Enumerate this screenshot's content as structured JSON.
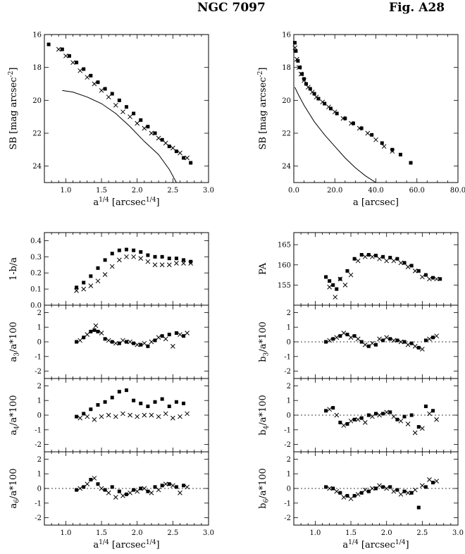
{
  "header": {
    "object": "NGC 7097",
    "figure": "Fig. A28"
  },
  "chart_data": [
    {
      "id": "sb_vs_r14",
      "type": "scatter",
      "xlabel": "a^{1/4} [arcsec^{1/4}]",
      "ylabel": "SB [mag arcsec^{-2}]",
      "xlim": [
        0.7,
        3.0
      ],
      "ylim": [
        16,
        25
      ],
      "y_inverted": true,
      "xticks": [
        "1.0",
        "1.5",
        "2.0",
        "2.5",
        "3.0"
      ],
      "yticks": [
        "16",
        "18",
        "20",
        "22",
        "24"
      ],
      "series": [
        {
          "marker": "filled-square",
          "x": [
            0.76,
            0.95,
            1.05,
            1.15,
            1.25,
            1.35,
            1.45,
            1.55,
            1.65,
            1.75,
            1.85,
            1.95,
            2.05,
            2.15,
            2.25,
            2.35,
            2.45,
            2.55,
            2.65,
            2.75
          ],
          "y": [
            16.6,
            16.9,
            17.3,
            17.7,
            18.1,
            18.5,
            18.9,
            19.3,
            19.6,
            20.0,
            20.4,
            20.8,
            21.2,
            21.6,
            22.0,
            22.4,
            22.8,
            23.1,
            23.5,
            23.8
          ]
        },
        {
          "marker": "cross",
          "x": [
            0.9,
            1.0,
            1.1,
            1.2,
            1.3,
            1.4,
            1.5,
            1.6,
            1.7,
            1.8,
            1.9,
            2.0,
            2.1,
            2.2,
            2.3,
            2.4,
            2.5,
            2.6,
            2.7
          ],
          "y": [
            16.9,
            17.3,
            17.7,
            18.2,
            18.6,
            19.0,
            19.4,
            19.8,
            20.3,
            20.7,
            21.0,
            21.4,
            21.7,
            22.0,
            22.3,
            22.6,
            22.9,
            23.2,
            23.5
          ]
        },
        {
          "marker": "line",
          "x": [
            0.95,
            1.1,
            1.3,
            1.5,
            1.7,
            1.9,
            2.1,
            2.3,
            2.45,
            2.55
          ],
          "y": [
            19.4,
            19.5,
            19.8,
            20.2,
            20.8,
            21.6,
            22.5,
            23.3,
            24.2,
            25.0
          ]
        }
      ]
    },
    {
      "id": "sb_vs_a",
      "type": "scatter",
      "xlabel": "a [arcsec]",
      "ylabel": "SB [mag arcsec^{-2}]",
      "xlim": [
        0,
        80
      ],
      "ylim": [
        16,
        25
      ],
      "y_inverted": true,
      "xticks": [
        "0.0",
        "20.0",
        "40.0",
        "60.0",
        "80.0"
      ],
      "yticks": [
        "16",
        "18",
        "20",
        "22",
        "24"
      ],
      "series": [
        {
          "marker": "filled-square",
          "x": [
            0.5,
            1,
            2,
            3,
            4,
            5,
            6,
            8,
            10,
            12,
            15,
            18,
            21,
            25,
            29,
            33,
            38,
            43,
            48,
            52,
            57
          ],
          "y": [
            16.5,
            17.0,
            17.6,
            18.0,
            18.4,
            18.7,
            19.0,
            19.3,
            19.6,
            19.9,
            20.2,
            20.5,
            20.8,
            21.1,
            21.4,
            21.7,
            22.1,
            22.6,
            23.0,
            23.3,
            23.8
          ]
        },
        {
          "marker": "cross",
          "x": [
            0.6,
            1.5,
            2.5,
            3.5,
            5,
            7,
            9,
            11,
            14,
            17,
            20,
            24,
            28,
            32,
            36,
            40,
            44,
            48
          ],
          "y": [
            16.8,
            17.5,
            18.0,
            18.4,
            18.8,
            19.2,
            19.5,
            19.8,
            20.1,
            20.4,
            20.7,
            21.1,
            21.4,
            21.7,
            22.0,
            22.4,
            22.8,
            23.1
          ]
        },
        {
          "marker": "line",
          "x": [
            0.5,
            2,
            5,
            10,
            15,
            20,
            25,
            30,
            35,
            40
          ],
          "y": [
            19.2,
            19.6,
            20.3,
            21.3,
            22.1,
            22.8,
            23.5,
            24.1,
            24.6,
            25.0
          ]
        }
      ]
    },
    {
      "id": "ellipticity",
      "type": "scatter",
      "xlabel": "",
      "ylabel": "1-b/a",
      "xlim": [
        0.7,
        3.0
      ],
      "ylim": [
        0.0,
        0.45
      ],
      "yticks": [
        "0.0",
        "0.1",
        "0.2",
        "0.3",
        "0.4"
      ],
      "series": [
        {
          "marker": "filled-square",
          "x": [
            1.15,
            1.25,
            1.35,
            1.45,
            1.55,
            1.65,
            1.75,
            1.85,
            1.95,
            2.05,
            2.15,
            2.25,
            2.35,
            2.45,
            2.55,
            2.65,
            2.75
          ],
          "y": [
            0.11,
            0.14,
            0.18,
            0.23,
            0.28,
            0.32,
            0.34,
            0.345,
            0.34,
            0.33,
            0.31,
            0.3,
            0.3,
            0.29,
            0.29,
            0.28,
            0.27
          ]
        },
        {
          "marker": "cross",
          "x": [
            1.15,
            1.25,
            1.35,
            1.45,
            1.55,
            1.65,
            1.75,
            1.85,
            1.95,
            2.05,
            2.15,
            2.25,
            2.35,
            2.45,
            2.55,
            2.65,
            2.75
          ],
          "y": [
            0.09,
            0.1,
            0.12,
            0.15,
            0.19,
            0.24,
            0.28,
            0.3,
            0.3,
            0.29,
            0.27,
            0.25,
            0.25,
            0.25,
            0.26,
            0.26,
            0.26
          ]
        }
      ]
    },
    {
      "id": "position_angle",
      "type": "scatter",
      "xlabel": "",
      "ylabel": "PA",
      "xlim": [
        0.7,
        3.0
      ],
      "ylim": [
        150,
        168
      ],
      "yticks": [
        "155",
        "160",
        "165"
      ],
      "series": [
        {
          "marker": "filled-square",
          "x": [
            1.15,
            1.2,
            1.25,
            1.3,
            1.35,
            1.45,
            1.55,
            1.65,
            1.75,
            1.85,
            1.95,
            2.05,
            2.15,
            2.25,
            2.35,
            2.45,
            2.55,
            2.65,
            2.75
          ],
          "y": [
            157.0,
            156.0,
            155.0,
            154.0,
            156.5,
            158.5,
            161.5,
            162.5,
            162.5,
            162.3,
            162.0,
            161.8,
            161.5,
            160.5,
            159.8,
            158.5,
            157.5,
            156.8,
            156.5
          ]
        },
        {
          "marker": "cross",
          "x": [
            1.2,
            1.28,
            1.35,
            1.42,
            1.5,
            1.6,
            1.7,
            1.8,
            1.9,
            2.0,
            2.1,
            2.2,
            2.3,
            2.4,
            2.5,
            2.6,
            2.7
          ],
          "y": [
            154.5,
            152.0,
            156.5,
            155.0,
            157.5,
            161.0,
            162.0,
            162.0,
            161.5,
            161.0,
            161.0,
            160.5,
            159.5,
            158.5,
            157.0,
            156.5,
            156.5
          ]
        }
      ]
    },
    {
      "id": "a3",
      "type": "scatter",
      "xlabel": "",
      "ylabel": "a_3/a*100",
      "xlim": [
        0.7,
        3.0
      ],
      "ylim": [
        -2.5,
        2.5
      ],
      "yticks": [
        "-2",
        "-1",
        "0",
        "1",
        "2"
      ],
      "series": [
        {
          "marker": "filled-square",
          "x": [
            1.15,
            1.25,
            1.35,
            1.4,
            1.45,
            1.55,
            1.65,
            1.75,
            1.85,
            1.95,
            2.05,
            2.15,
            2.25,
            2.35,
            2.45,
            2.55,
            2.65
          ],
          "y": [
            0.0,
            0.3,
            0.7,
            0.8,
            0.7,
            0.2,
            0.0,
            -0.1,
            0.0,
            -0.1,
            -0.2,
            -0.3,
            0.1,
            0.4,
            0.5,
            0.6,
            0.4
          ]
        },
        {
          "marker": "cross",
          "x": [
            1.2,
            1.3,
            1.42,
            1.5,
            1.6,
            1.7,
            1.8,
            1.9,
            2.0,
            2.1,
            2.2,
            2.3,
            2.4,
            2.5,
            2.6,
            2.7
          ],
          "y": [
            0.1,
            0.5,
            1.1,
            0.6,
            0.1,
            -0.1,
            0.1,
            0.0,
            -0.2,
            -0.1,
            0.0,
            0.3,
            0.2,
            -0.3,
            0.5,
            0.6
          ]
        }
      ]
    },
    {
      "id": "b3",
      "type": "scatter",
      "xlabel": "",
      "ylabel": "b_3/a*100",
      "xlim": [
        0.7,
        3.0
      ],
      "ylim": [
        -2.5,
        2.5
      ],
      "yticks": [
        "-2",
        "-1",
        "0",
        "1",
        "2"
      ],
      "zero_line": true,
      "series": [
        {
          "marker": "filled-square",
          "x": [
            1.15,
            1.25,
            1.35,
            1.45,
            1.55,
            1.65,
            1.75,
            1.85,
            1.95,
            2.05,
            2.15,
            2.25,
            2.35,
            2.45,
            2.55,
            2.65
          ],
          "y": [
            0.0,
            0.2,
            0.4,
            0.5,
            0.4,
            0.0,
            -0.3,
            -0.2,
            0.1,
            0.2,
            0.1,
            0.0,
            -0.1,
            -0.4,
            0.1,
            0.3
          ]
        },
        {
          "marker": "cross",
          "x": [
            1.2,
            1.3,
            1.4,
            1.5,
            1.6,
            1.7,
            1.8,
            1.9,
            2.0,
            2.1,
            2.2,
            2.3,
            2.4,
            2.5,
            2.6,
            2.7
          ],
          "y": [
            0.1,
            0.3,
            0.6,
            0.3,
            0.2,
            -0.2,
            -0.1,
            0.2,
            0.3,
            0.1,
            0.0,
            -0.2,
            -0.3,
            -0.5,
            0.2,
            0.4
          ]
        }
      ]
    },
    {
      "id": "a4",
      "type": "scatter",
      "xlabel": "",
      "ylabel": "a_4/a*100",
      "xlim": [
        0.7,
        3.0
      ],
      "ylim": [
        -2.5,
        2.5
      ],
      "yticks": [
        "-2",
        "-1",
        "0",
        "1",
        "2"
      ],
      "series": [
        {
          "marker": "filled-square",
          "x": [
            1.15,
            1.25,
            1.35,
            1.45,
            1.55,
            1.65,
            1.75,
            1.85,
            1.95,
            2.05,
            2.15,
            2.25,
            2.35,
            2.45,
            2.55,
            2.65
          ],
          "y": [
            -0.1,
            0.1,
            0.4,
            0.7,
            0.9,
            1.2,
            1.6,
            1.7,
            1.0,
            0.8,
            0.6,
            0.9,
            1.1,
            0.6,
            0.9,
            0.8
          ]
        },
        {
          "marker": "cross",
          "x": [
            1.2,
            1.3,
            1.4,
            1.5,
            1.6,
            1.7,
            1.8,
            1.9,
            2.0,
            2.1,
            2.2,
            2.3,
            2.4,
            2.5,
            2.6,
            2.7
          ],
          "y": [
            -0.2,
            -0.1,
            -0.3,
            -0.1,
            0.0,
            -0.1,
            0.1,
            0.0,
            -0.1,
            0.0,
            0.0,
            -0.1,
            0.1,
            -0.2,
            -0.1,
            0.1
          ]
        }
      ]
    },
    {
      "id": "b4",
      "type": "scatter",
      "xlabel": "",
      "ylabel": "b_4/a*100",
      "xlim": [
        0.7,
        3.0
      ],
      "ylim": [
        -2.5,
        2.5
      ],
      "yticks": [
        "-2",
        "-1",
        "0",
        "1",
        "2"
      ],
      "zero_line": true,
      "series": [
        {
          "marker": "filled-square",
          "x": [
            1.15,
            1.25,
            1.35,
            1.45,
            1.55,
            1.65,
            1.75,
            1.85,
            1.95,
            2.05,
            2.15,
            2.25,
            2.35,
            2.45,
            2.55,
            2.65
          ],
          "y": [
            0.3,
            0.5,
            -0.5,
            -0.6,
            -0.3,
            -0.2,
            0.0,
            0.1,
            0.1,
            0.2,
            -0.3,
            -0.1,
            0.0,
            -0.8,
            0.6,
            0.3
          ]
        },
        {
          "marker": "cross",
          "x": [
            1.2,
            1.3,
            1.4,
            1.5,
            1.6,
            1.7,
            1.8,
            1.9,
            2.0,
            2.1,
            2.2,
            2.3,
            2.4,
            2.5,
            2.6,
            2.7
          ],
          "y": [
            0.4,
            0.0,
            -0.7,
            -0.4,
            -0.3,
            -0.5,
            -0.1,
            0.0,
            0.2,
            -0.1,
            -0.4,
            -0.6,
            -1.2,
            -0.9,
            0.1,
            -0.3
          ]
        }
      ]
    },
    {
      "id": "a6",
      "type": "scatter",
      "xlabel": "a^{1/4} [arcsec^{1/4}]",
      "ylabel": "a_6/a*100",
      "xlim": [
        0.7,
        3.0
      ],
      "ylim": [
        -2.5,
        2.5
      ],
      "yticks": [
        "-2",
        "-1",
        "0",
        "1",
        "2"
      ],
      "xticks": [
        "1.0",
        "1.5",
        "2.0",
        "2.5",
        "3.0"
      ],
      "zero_line": true,
      "series": [
        {
          "marker": "filled-square",
          "x": [
            1.15,
            1.25,
            1.35,
            1.45,
            1.55,
            1.65,
            1.75,
            1.85,
            1.95,
            2.05,
            2.15,
            2.25,
            2.35,
            2.45,
            2.55,
            2.65
          ],
          "y": [
            -0.1,
            0.1,
            0.6,
            0.3,
            -0.1,
            0.1,
            -0.2,
            -0.4,
            -0.1,
            0.0,
            -0.2,
            0.1,
            0.2,
            0.3,
            0.1,
            0.2
          ]
        },
        {
          "marker": "cross",
          "x": [
            1.2,
            1.3,
            1.4,
            1.5,
            1.6,
            1.7,
            1.8,
            1.9,
            2.0,
            2.1,
            2.2,
            2.3,
            2.4,
            2.5,
            2.6,
            2.7
          ],
          "y": [
            0.0,
            0.3,
            0.7,
            0.0,
            -0.3,
            -0.6,
            -0.5,
            -0.3,
            -0.2,
            0.0,
            -0.3,
            -0.1,
            0.3,
            0.2,
            -0.3,
            0.1
          ]
        }
      ]
    },
    {
      "id": "b6",
      "type": "scatter",
      "xlabel": "a^{1/4} [arcsec^{1/4}]",
      "ylabel": "b_6/a*100",
      "xlim": [
        0.7,
        3.0
      ],
      "ylim": [
        -2.5,
        2.5
      ],
      "yticks": [
        "-2",
        "-1",
        "0",
        "1",
        "2"
      ],
      "xticks": [
        "1.0",
        "1.5",
        "2.0",
        "2.5",
        "3.0"
      ],
      "zero_line": true,
      "series": [
        {
          "marker": "filled-square",
          "x": [
            1.15,
            1.25,
            1.35,
            1.45,
            1.55,
            1.65,
            1.75,
            1.85,
            1.95,
            2.05,
            2.15,
            2.25,
            2.35,
            2.45,
            2.55,
            2.65
          ],
          "y": [
            0.1,
            0.0,
            -0.3,
            -0.5,
            -0.5,
            -0.3,
            -0.2,
            0.0,
            0.1,
            0.1,
            -0.1,
            -0.2,
            -0.3,
            -1.3,
            0.1,
            0.4
          ]
        },
        {
          "marker": "cross",
          "x": [
            1.2,
            1.3,
            1.4,
            1.5,
            1.6,
            1.7,
            1.8,
            1.9,
            2.0,
            2.1,
            2.2,
            2.3,
            2.4,
            2.5,
            2.6,
            2.7
          ],
          "y": [
            0.0,
            -0.2,
            -0.6,
            -0.7,
            -0.4,
            -0.1,
            0.0,
            0.2,
            0.0,
            -0.2,
            -0.4,
            -0.3,
            -0.1,
            0.2,
            0.6,
            0.5
          ]
        }
      ]
    }
  ]
}
